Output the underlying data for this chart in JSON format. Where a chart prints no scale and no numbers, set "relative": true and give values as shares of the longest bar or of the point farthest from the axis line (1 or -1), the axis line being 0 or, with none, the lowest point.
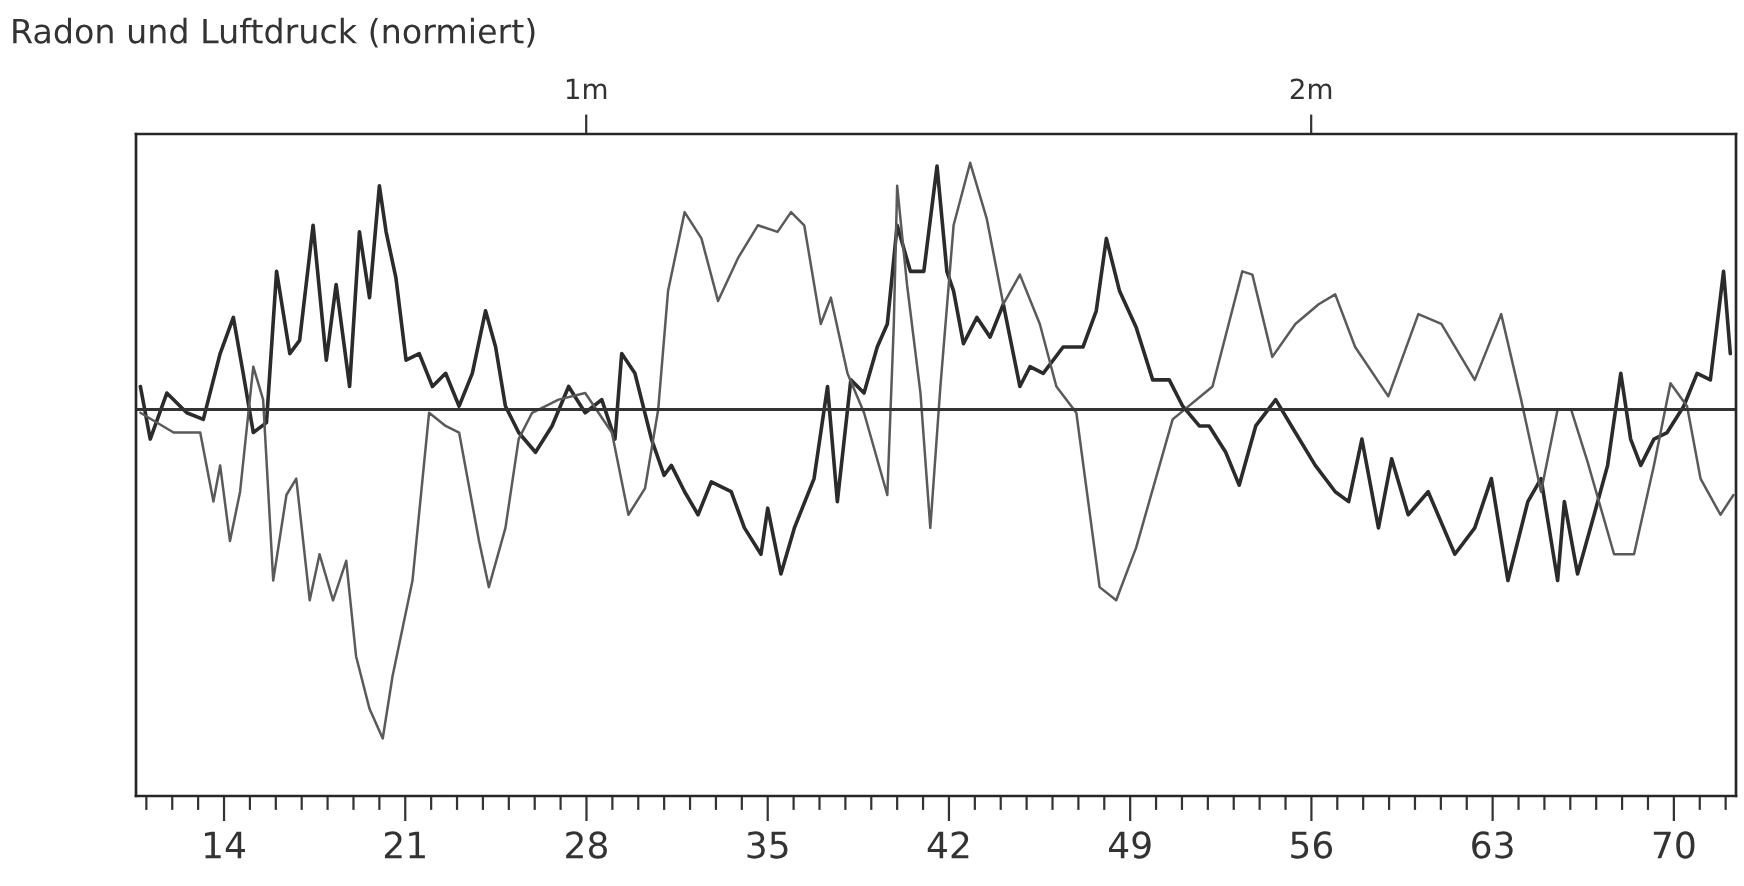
{
  "chart_data": {
    "type": "line",
    "title": "Radon und Luftdruck (normiert)",
    "relative": true,
    "xlim": [
      10.6,
      72.4
    ],
    "xticks": [
      14,
      21,
      28,
      35,
      42,
      49,
      56,
      63,
      70
    ],
    "x2lim": [
      0.379,
      2.586
    ],
    "x2ticks": [
      {
        "value": 1,
        "label": "1m"
      },
      {
        "value": 2,
        "label": "2m"
      }
    ],
    "grid": false,
    "legend": false,
    "marker": "none",
    "line_style": "solid",
    "series": [
      {
        "color": "#2b2b2b",
        "x": [
          10.77,
          11.15,
          11.79,
          12.56,
          13.2,
          13.85,
          14.36,
          14.74,
          15.13,
          15.64,
          16.03,
          16.54,
          16.92,
          17.44,
          17.95,
          18.33,
          18.85,
          19.23,
          19.62,
          20.0,
          20.26,
          20.64,
          21.03,
          21.54,
          22.05,
          22.56,
          23.08,
          23.59,
          24.1,
          24.49,
          24.87,
          25.38,
          26.03,
          26.67,
          27.31,
          27.95,
          28.59,
          29.1,
          29.36,
          29.87,
          30.51,
          31.0,
          31.28,
          31.79,
          32.31,
          32.82,
          33.59,
          34.1,
          34.74,
          35.0,
          35.51,
          36.03,
          36.79,
          37.31,
          37.69,
          38.21,
          38.72,
          39.23,
          39.62,
          40.0,
          40.51,
          41.03,
          41.54,
          41.92,
          42.18,
          42.56,
          43.08,
          43.59,
          44.1,
          44.74,
          45.13,
          45.64,
          46.41,
          47.18,
          47.69,
          48.08,
          48.59,
          49.23,
          49.87,
          50.51,
          51.03,
          51.67,
          52.05,
          52.69,
          53.21,
          53.85,
          54.62,
          55.38,
          56.15,
          56.92,
          57.44,
          57.95,
          58.59,
          59.1,
          59.74,
          60.51,
          61.54,
          62.31,
          62.95,
          63.59,
          64.36,
          64.87,
          65.51,
          65.77,
          66.28,
          66.92,
          67.44,
          67.95,
          68.33,
          68.72,
          69.23,
          69.74,
          70.38,
          70.9,
          71.41,
          71.92,
          72.18
        ],
        "values": [
          0.07,
          -0.09,
          0.05,
          -0.01,
          -0.03,
          0.17,
          0.28,
          0.11,
          -0.07,
          -0.04,
          0.42,
          0.17,
          0.21,
          0.56,
          0.15,
          0.38,
          0.07,
          0.54,
          0.34,
          0.68,
          0.54,
          0.4,
          0.15,
          0.17,
          0.07,
          0.11,
          0.01,
          0.11,
          0.3,
          0.19,
          0.01,
          -0.07,
          -0.13,
          -0.05,
          0.07,
          -0.01,
          0.03,
          -0.09,
          0.17,
          0.11,
          -0.09,
          -0.2,
          -0.17,
          -0.25,
          -0.32,
          -0.22,
          -0.25,
          -0.36,
          -0.44,
          -0.3,
          -0.5,
          -0.36,
          -0.21,
          0.07,
          -0.28,
          0.09,
          0.05,
          0.19,
          0.26,
          0.56,
          0.42,
          0.42,
          0.74,
          0.42,
          0.36,
          0.2,
          0.28,
          0.22,
          0.32,
          0.07,
          0.13,
          0.11,
          0.19,
          0.19,
          0.3,
          0.52,
          0.36,
          0.25,
          0.09,
          0.09,
          0.01,
          -0.05,
          -0.05,
          -0.13,
          -0.23,
          -0.05,
          0.03,
          -0.07,
          -0.17,
          -0.25,
          -0.28,
          -0.09,
          -0.36,
          -0.15,
          -0.32,
          -0.25,
          -0.44,
          -0.36,
          -0.21,
          -0.52,
          -0.28,
          -0.21,
          -0.52,
          -0.28,
          -0.5,
          -0.32,
          -0.17,
          0.11,
          -0.09,
          -0.17,
          -0.09,
          -0.07,
          0.01,
          0.11,
          0.09,
          0.42,
          0.17
        ]
      },
      {
        "color": "#5a5a5a",
        "x": [
          10.77,
          12.05,
          13.08,
          13.59,
          13.85,
          14.23,
          14.62,
          15.13,
          15.51,
          15.9,
          16.41,
          16.79,
          17.31,
          17.69,
          18.21,
          18.72,
          19.1,
          19.62,
          20.13,
          20.51,
          21.28,
          21.92,
          22.56,
          23.08,
          23.85,
          24.23,
          24.87,
          25.38,
          25.9,
          26.92,
          27.95,
          28.98,
          29.62,
          30.26,
          30.77,
          31.15,
          31.79,
          32.44,
          33.08,
          33.85,
          34.62,
          35.38,
          35.9,
          36.41,
          37.05,
          37.44,
          38.08,
          38.72,
          39.62,
          39.87,
          40.0,
          40.38,
          40.9,
          41.28,
          41.67,
          42.18,
          42.82,
          43.46,
          44.1,
          44.74,
          45.51,
          46.15,
          46.92,
          47.82,
          48.46,
          49.23,
          50.64,
          52.18,
          53.33,
          53.72,
          54.49,
          55.38,
          56.28,
          56.92,
          57.69,
          58.97,
          60.13,
          61.02,
          62.31,
          63.33,
          64.1,
          64.87,
          65.51,
          66.03,
          66.67,
          67.69,
          68.46,
          69.23,
          69.87,
          70.51,
          71.03,
          71.8,
          72.3
        ],
        "values": [
          -0.01,
          -0.07,
          -0.07,
          -0.28,
          -0.17,
          -0.4,
          -0.25,
          0.13,
          0.03,
          -0.52,
          -0.26,
          -0.21,
          -0.58,
          -0.44,
          -0.58,
          -0.46,
          -0.75,
          -0.91,
          -1.0,
          -0.81,
          -0.52,
          -0.01,
          -0.05,
          -0.07,
          -0.4,
          -0.54,
          -0.36,
          -0.09,
          -0.01,
          0.03,
          0.05,
          -0.07,
          -0.32,
          -0.24,
          0.0,
          0.36,
          0.6,
          0.52,
          0.33,
          0.46,
          0.56,
          0.54,
          0.6,
          0.56,
          0.26,
          0.34,
          0.11,
          -0.01,
          -0.26,
          0.26,
          0.68,
          0.38,
          0.05,
          -0.36,
          0.07,
          0.56,
          0.75,
          0.58,
          0.32,
          0.41,
          0.26,
          0.07,
          -0.01,
          -0.54,
          -0.58,
          -0.42,
          -0.03,
          0.07,
          0.42,
          0.41,
          0.16,
          0.26,
          0.32,
          0.35,
          0.19,
          0.04,
          0.29,
          0.26,
          0.09,
          0.29,
          0.03,
          -0.25,
          0.0,
          0.0,
          -0.16,
          -0.44,
          -0.44,
          -0.17,
          0.08,
          0.01,
          -0.21,
          -0.32,
          -0.26
        ]
      }
    ]
  }
}
